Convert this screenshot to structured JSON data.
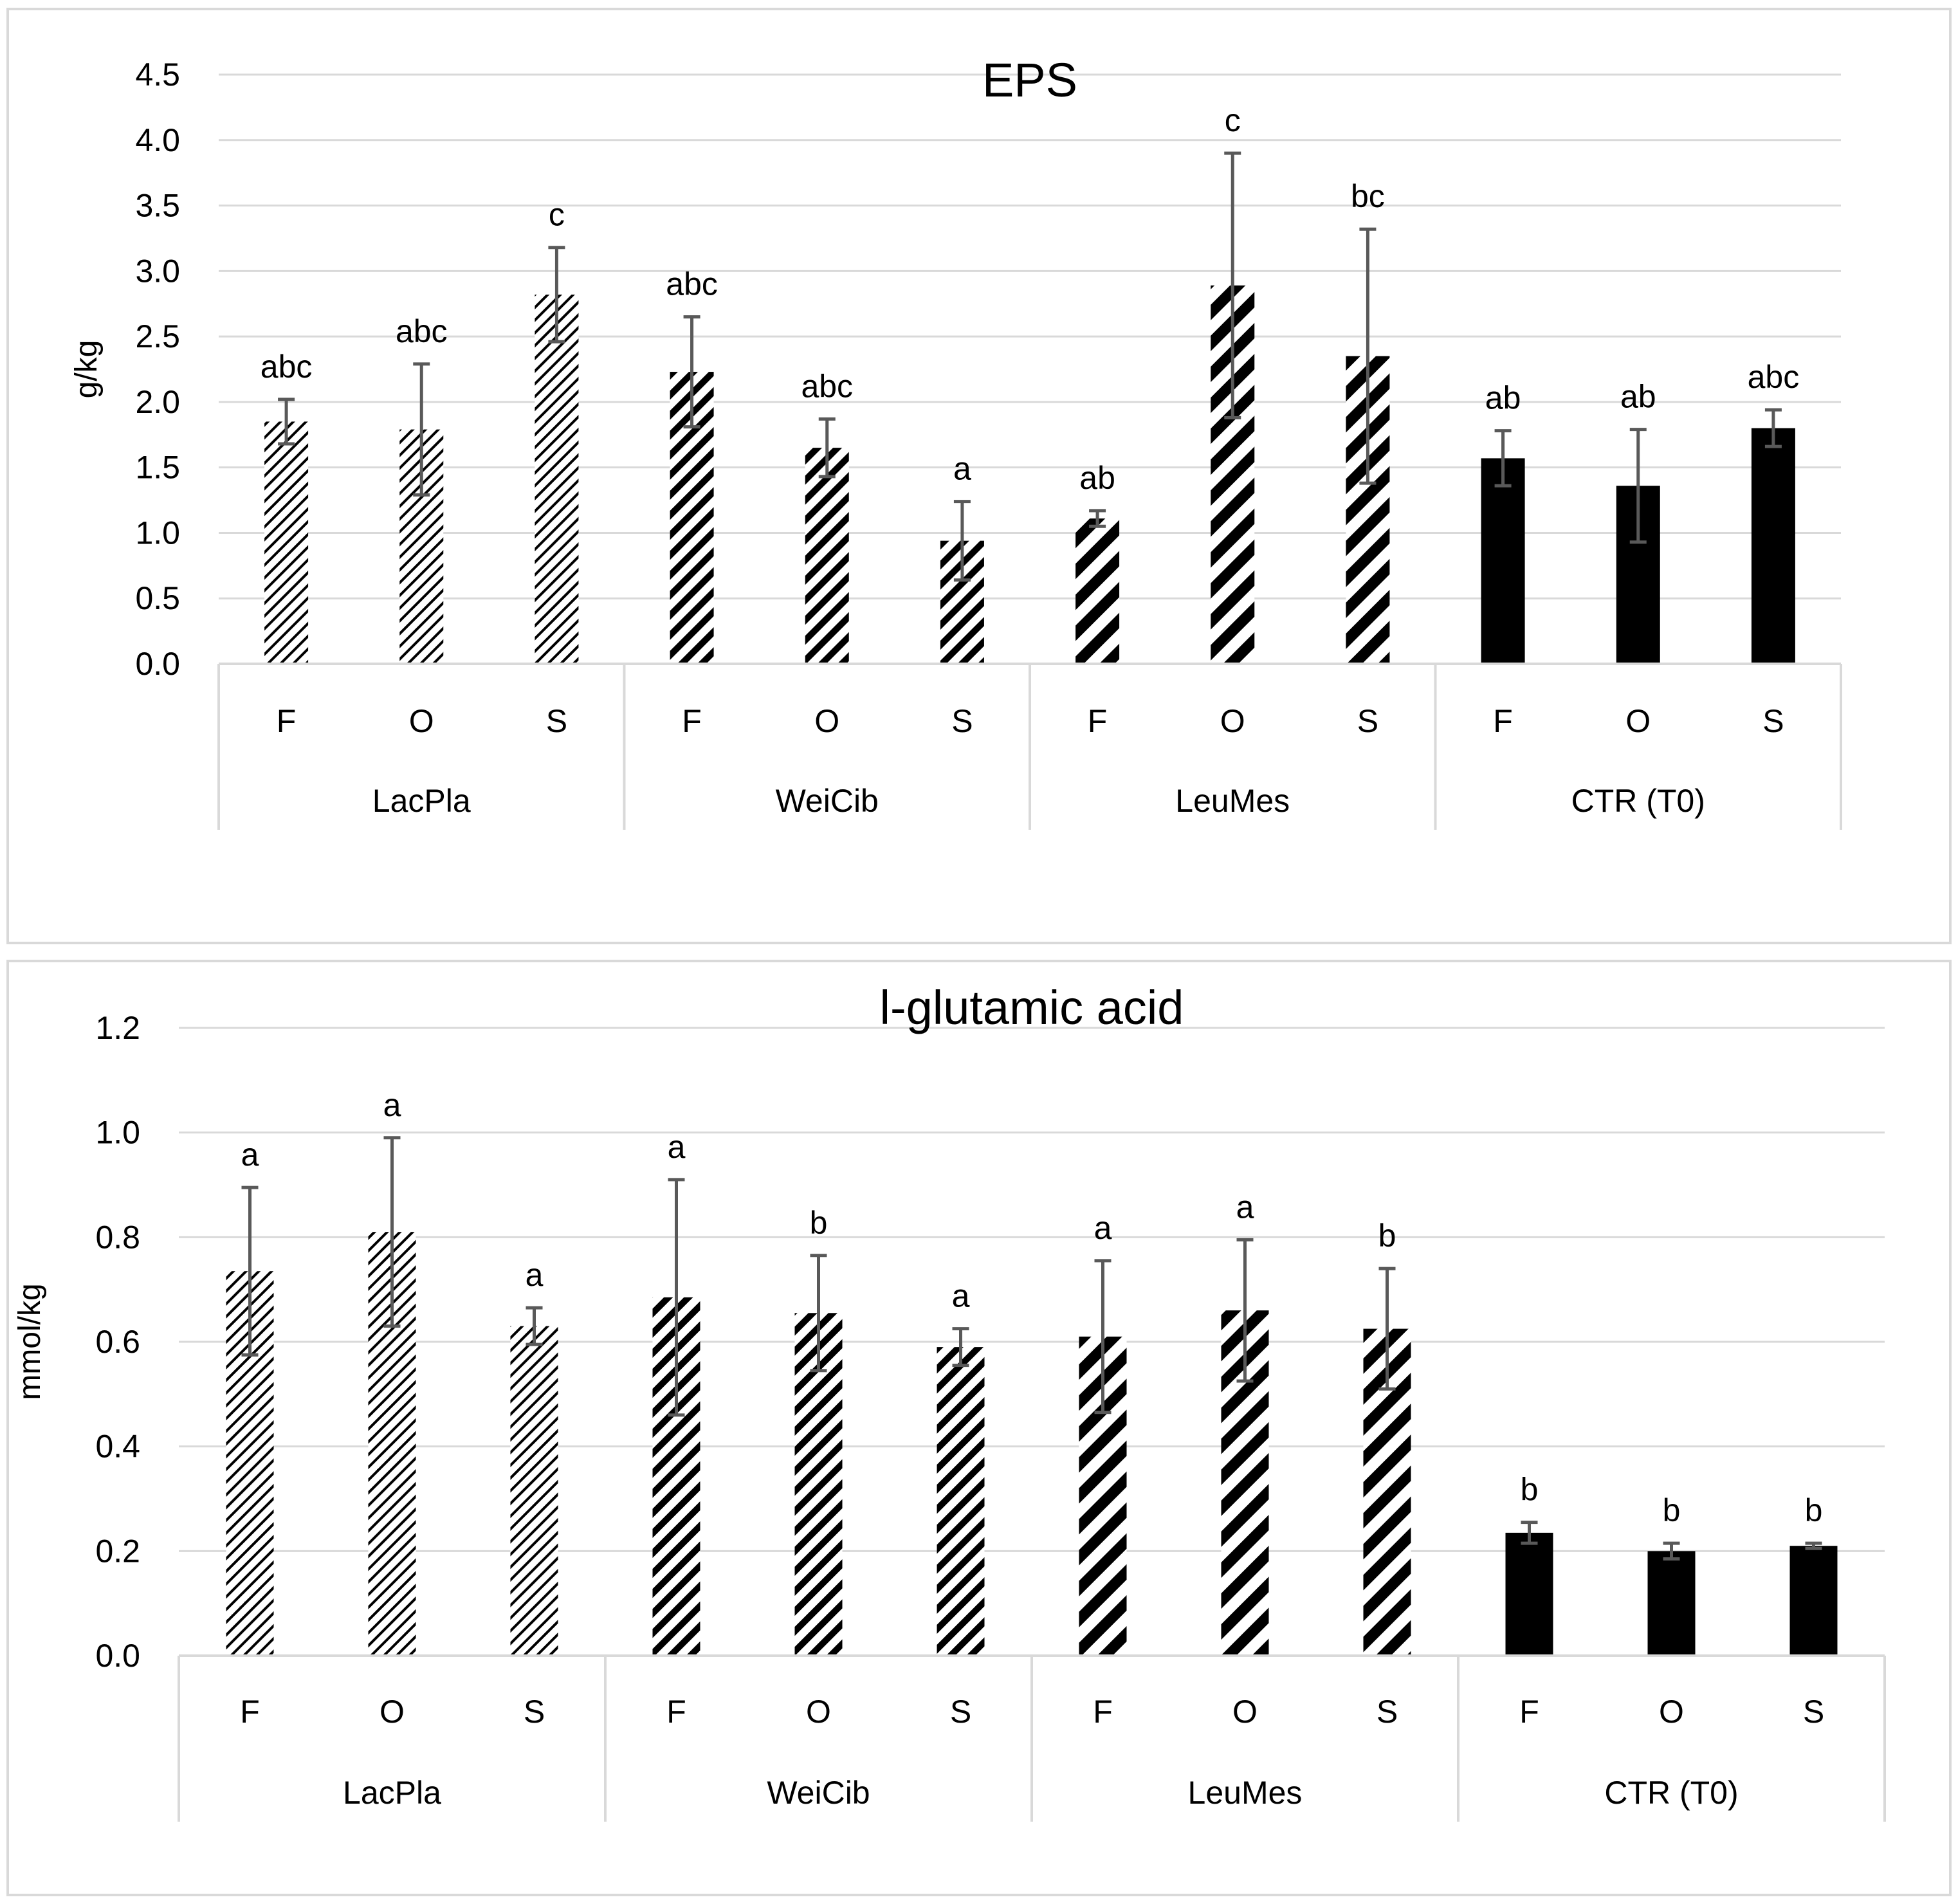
{
  "chart_data": [
    {
      "type": "bar",
      "title": "EPS",
      "ylabel": "g/kg",
      "xlabel": "",
      "ylim": [
        0,
        4.5
      ],
      "yticks": [
        "0.0",
        "0.5",
        "1.0",
        "1.5",
        "2.0",
        "2.5",
        "3.0",
        "3.5",
        "4.0",
        "4.5"
      ],
      "groups": [
        {
          "name": "LacPla",
          "pattern": "hatch-fine"
        },
        {
          "name": "WeiCib",
          "pattern": "hatch-medium"
        },
        {
          "name": "LeuMes",
          "pattern": "hatch-wide"
        },
        {
          "name": "CTR (T0)",
          "pattern": "solid"
        }
      ],
      "categories": [
        "F",
        "O",
        "S",
        "F",
        "O",
        "S",
        "F",
        "O",
        "S",
        "F",
        "O",
        "S"
      ],
      "values": [
        1.85,
        1.79,
        2.82,
        2.23,
        1.65,
        0.94,
        1.11,
        2.89,
        2.35,
        1.57,
        1.36,
        1.8
      ],
      "errors": [
        0.17,
        0.5,
        0.36,
        0.42,
        0.22,
        0.3,
        0.06,
        1.01,
        0.97,
        0.21,
        0.43,
        0.14
      ],
      "significance": [
        "abc",
        "abc",
        "c",
        "abc",
        "abc",
        "a",
        "ab",
        "c",
        "bc",
        "ab",
        "ab",
        "abc"
      ]
    },
    {
      "type": "bar",
      "title": "l-glutamic acid",
      "ylabel": "mmol/kg",
      "xlabel": "",
      "ylim": [
        0,
        1.2
      ],
      "yticks": [
        "0.0",
        "0.2",
        "0.4",
        "0.6",
        "0.8",
        "1.0",
        "1.2"
      ],
      "groups": [
        {
          "name": "LacPla",
          "pattern": "hatch-fine"
        },
        {
          "name": "WeiCib",
          "pattern": "hatch-medium"
        },
        {
          "name": "LeuMes",
          "pattern": "hatch-wide"
        },
        {
          "name": "CTR (T0)",
          "pattern": "solid"
        }
      ],
      "categories": [
        "F",
        "O",
        "S",
        "F",
        "O",
        "S",
        "F",
        "O",
        "S",
        "F",
        "O",
        "S"
      ],
      "values": [
        0.735,
        0.81,
        0.63,
        0.685,
        0.655,
        0.59,
        0.61,
        0.66,
        0.625,
        0.235,
        0.2,
        0.21
      ],
      "errors": [
        0.16,
        0.18,
        0.035,
        0.225,
        0.11,
        0.035,
        0.145,
        0.135,
        0.115,
        0.02,
        0.015,
        0.005
      ],
      "significance": [
        "a",
        "a",
        "a",
        "a",
        "b",
        "a",
        "a",
        "a",
        "b",
        "b",
        "b",
        "b"
      ]
    }
  ]
}
